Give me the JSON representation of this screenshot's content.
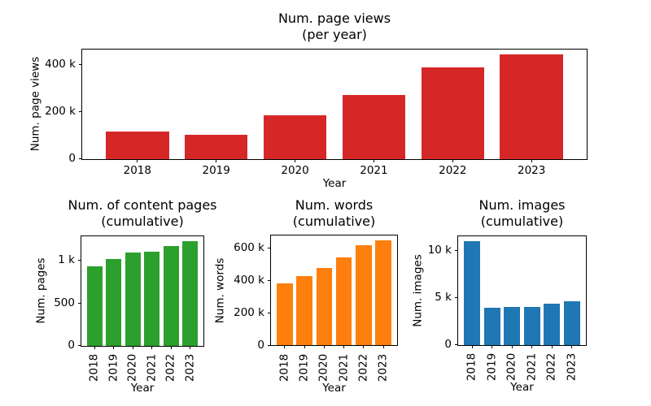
{
  "figure": {
    "background": "#ffffff",
    "text_color": "#000000"
  },
  "chart_data": [
    {
      "id": "page-views-per-year",
      "type": "bar",
      "title": "Num. page views (per year)",
      "title_lines": [
        "Num. page views",
        "(per year)"
      ],
      "xlabel": "Year",
      "ylabel": "Num. page views",
      "categories": [
        "2018",
        "2019",
        "2020",
        "2021",
        "2022",
        "2023"
      ],
      "values": [
        115000,
        100000,
        185000,
        270000,
        385000,
        440000
      ],
      "bar_color": "#d62728",
      "ylim": [
        0,
        462000
      ],
      "yticks": [
        {
          "value": 0,
          "label": "0"
        },
        {
          "value": 200000,
          "label": "200 k"
        },
        {
          "value": 400000,
          "label": "400 k"
        }
      ],
      "grid": false,
      "xtick_rotation": 0
    },
    {
      "id": "content-pages-cumulative",
      "type": "bar",
      "title": "Num. of content pages (cumulative)",
      "title_lines": [
        "Num. of content pages",
        "(cumulative)"
      ],
      "xlabel": "Year",
      "ylabel": "Num. pages",
      "categories": [
        "2018",
        "2019",
        "2020",
        "2021",
        "2022",
        "2023"
      ],
      "values": [
        930,
        1010,
        1090,
        1100,
        1170,
        1220
      ],
      "bar_color": "#2ca02c",
      "ylim": [
        0,
        1281
      ],
      "yticks": [
        {
          "value": 0,
          "label": "0"
        },
        {
          "value": 500,
          "label": "500"
        },
        {
          "value": 1000,
          "label": "1 k"
        }
      ],
      "grid": false,
      "xtick_rotation": 90
    },
    {
      "id": "words-cumulative",
      "type": "bar",
      "title": "Num. words (cumulative)",
      "title_lines": [
        "Num. words",
        "(cumulative)"
      ],
      "xlabel": "Year",
      "ylabel": "Num. words",
      "categories": [
        "2018",
        "2019",
        "2020",
        "2021",
        "2022",
        "2023"
      ],
      "values": [
        380000,
        425000,
        475000,
        540000,
        615000,
        645000
      ],
      "bar_color": "#ff7f0e",
      "ylim": [
        0,
        677000
      ],
      "yticks": [
        {
          "value": 0,
          "label": "0"
        },
        {
          "value": 200000,
          "label": "200 k"
        },
        {
          "value": 400000,
          "label": "400 k"
        },
        {
          "value": 600000,
          "label": "600 k"
        }
      ],
      "grid": false,
      "xtick_rotation": 90
    },
    {
      "id": "images-cumulative",
      "type": "bar",
      "title": "Num. images (cumulative)",
      "title_lines": [
        "Num. images",
        "(cumulative)"
      ],
      "xlabel": "Year",
      "ylabel": "Num. images",
      "categories": [
        "2018",
        "2019",
        "2020",
        "2021",
        "2022",
        "2023"
      ],
      "values": [
        11000,
        3900,
        4000,
        4000,
        4350,
        4600
      ],
      "bar_color": "#1f77b4",
      "ylim": [
        0,
        11550
      ],
      "yticks": [
        {
          "value": 0,
          "label": "0"
        },
        {
          "value": 5000,
          "label": "5 k"
        },
        {
          "value": 10000,
          "label": "10 k"
        }
      ],
      "grid": false,
      "xtick_rotation": 90
    }
  ]
}
